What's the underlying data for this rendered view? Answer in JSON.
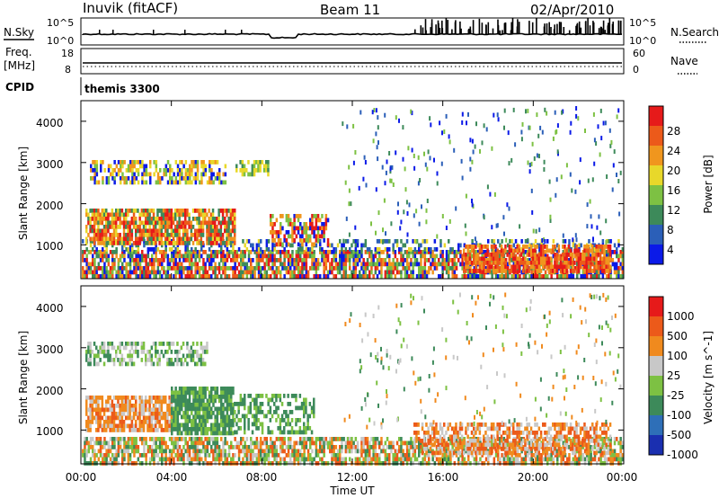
{
  "header": {
    "station": "Inuvik (fitACF)",
    "beam": "Beam 11",
    "date": "02/Apr/2010"
  },
  "top_panels": {
    "nsky_label": "N.Sky",
    "nsky_ticks": [
      "10^5",
      "10^0"
    ],
    "nsearch_label": "N.Search",
    "nsearch_ticks": [
      "10^5",
      "10^0"
    ],
    "freq_label": "Freq.",
    "freq_unit": "[MHz]",
    "freq_ticks": [
      "18",
      "8"
    ],
    "nave_label": "Nave",
    "nave_ticks": [
      "60",
      "0"
    ],
    "cpid_label": "CPID",
    "cpid_value": "themis 3300"
  },
  "x_axis": {
    "ticks": [
      "00:00",
      "04:00",
      "08:00",
      "12:00",
      "16:00",
      "20:00",
      "00:00"
    ],
    "label": "Time UT"
  },
  "power_panel": {
    "ylabel": "Slant Range [km]",
    "yticks": [
      "4000",
      "3000",
      "2000",
      "1000"
    ],
    "colorbar_label": "Power [dB]",
    "colorbar_ticks": [
      "28",
      "24",
      "20",
      "16",
      "12",
      "8",
      "4"
    ],
    "colors": [
      "#0b1ae8",
      "#2b5fb8",
      "#3d8a5a",
      "#7dc143",
      "#e8d82a",
      "#f0961e",
      "#ec5a1a",
      "#e61a1a"
    ]
  },
  "velocity_panel": {
    "ylabel": "Slant Range [km]",
    "yticks": [
      "4000",
      "3000",
      "2000",
      "1000"
    ],
    "colorbar_label": "Velocity [m s^-1]",
    "colorbar_ticks": [
      "1000",
      "500",
      "100",
      "25",
      "-25",
      "-100",
      "-500",
      "-1000"
    ],
    "colors": [
      "#1a2fb0",
      "#2e6fb8",
      "#3d8a5a",
      "#7dc143",
      "#c8c8c8",
      "#f08a1e",
      "#ec5a1a",
      "#e61a1a"
    ]
  },
  "chart_data": {
    "type": "heatmap",
    "x_range_hours": [
      0,
      24
    ],
    "y_range_km": [
      180,
      4500
    ],
    "panels": [
      {
        "name": "Power",
        "unit": "dB",
        "range": [
          0,
          30
        ]
      },
      {
        "name": "Velocity",
        "unit": "m s^-1",
        "range": [
          -1000,
          1000
        ]
      }
    ]
  }
}
